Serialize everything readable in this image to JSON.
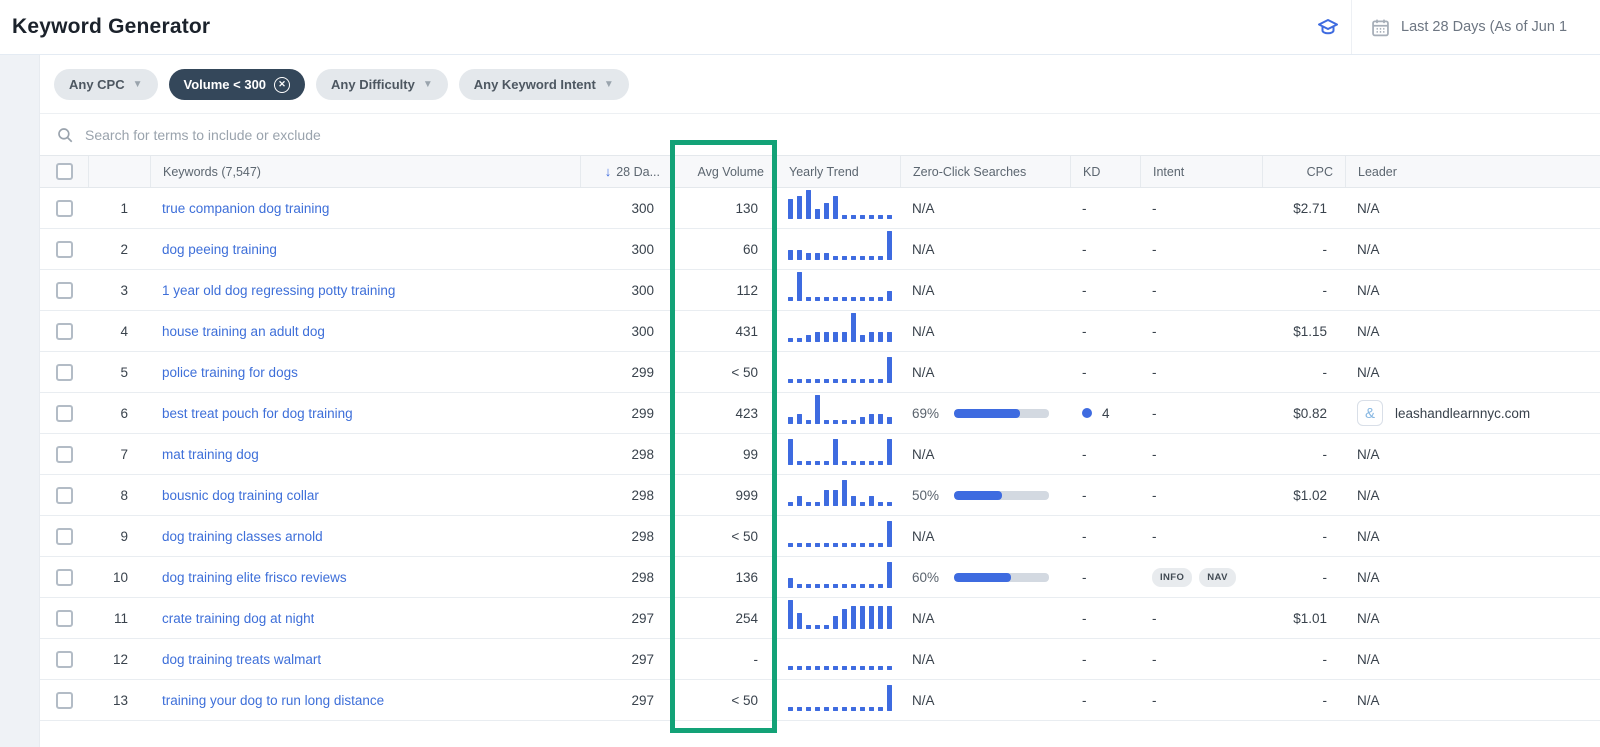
{
  "header": {
    "title": "Keyword Generator",
    "date_range": "Last 28 Days (As of Jun 1",
    "icons": {
      "right_icon_1": "graduation-cap-icon",
      "right_icon_2": "calendar-icon"
    }
  },
  "filters": {
    "pills": [
      {
        "label": "Any CPC",
        "active": false,
        "control": "caret"
      },
      {
        "label": "Volume < 300",
        "active": true,
        "control": "close"
      },
      {
        "label": "Any Difficulty",
        "active": false,
        "control": "caret"
      },
      {
        "label": "Any Keyword Intent",
        "active": false,
        "control": "caret"
      }
    ],
    "close_glyph": "✕",
    "caret_glyph": "▼"
  },
  "search": {
    "placeholder": "Search for terms to include or exclude"
  },
  "table": {
    "columns": {
      "keywords": "Keywords (7,547)",
      "day28": "28 Da...",
      "day28_sort_arrow": "↓",
      "avg_volume": "Avg Volume",
      "yearly_trend": "Yearly Trend",
      "zero_click": "Zero-Click Searches",
      "kd": "KD",
      "intent": "Intent",
      "cpc": "CPC",
      "leader": "Leader"
    },
    "rows": [
      {
        "num": "1",
        "keyword": "true companion dog training",
        "day28": "300",
        "avg_volume": "130",
        "trend": [
          6,
          7,
          9,
          3,
          5,
          7,
          1,
          1,
          1,
          1,
          1,
          1
        ],
        "zero_click": null,
        "kd": null,
        "intent": [],
        "cpc": "$2.71",
        "leader": null
      },
      {
        "num": "2",
        "keyword": "dog peeing training",
        "day28": "300",
        "avg_volume": "60",
        "trend": [
          3,
          3,
          2,
          2,
          2,
          1,
          1,
          1,
          1,
          1,
          1,
          9
        ],
        "zero_click": null,
        "kd": null,
        "intent": [],
        "cpc": "-",
        "leader": null
      },
      {
        "num": "3",
        "keyword": "1 year old dog regressing potty training",
        "day28": "300",
        "avg_volume": "112",
        "trend": [
          1,
          9,
          1,
          1,
          1,
          1,
          1,
          1,
          1,
          1,
          1,
          3
        ],
        "zero_click": null,
        "kd": null,
        "intent": [],
        "cpc": "-",
        "leader": null
      },
      {
        "num": "4",
        "keyword": "house training an adult dog",
        "day28": "300",
        "avg_volume": "431",
        "trend": [
          1,
          1,
          2,
          3,
          3,
          3,
          3,
          9,
          2,
          3,
          3,
          3
        ],
        "zero_click": null,
        "kd": null,
        "intent": [],
        "cpc": "$1.15",
        "leader": null
      },
      {
        "num": "5",
        "keyword": "police training for dogs",
        "day28": "299",
        "avg_volume": "< 50",
        "trend": [
          1,
          1,
          1,
          1,
          1,
          1,
          1,
          1,
          1,
          1,
          1,
          8
        ],
        "zero_click": null,
        "kd": null,
        "intent": [],
        "cpc": "-",
        "leader": null
      },
      {
        "num": "6",
        "keyword": "best treat pouch for dog training",
        "day28": "299",
        "avg_volume": "423",
        "trend": [
          2,
          3,
          1,
          9,
          1,
          1,
          1,
          1,
          2,
          3,
          3,
          2
        ],
        "zero_click": "69%",
        "kd": "4",
        "intent": [],
        "cpc": "$0.82",
        "leader": "leashandlearnnyc.com"
      },
      {
        "num": "7",
        "keyword": "mat training dog",
        "day28": "298",
        "avg_volume": "99",
        "trend": [
          8,
          1,
          1,
          1,
          1,
          8,
          1,
          1,
          1,
          1,
          1,
          8
        ],
        "zero_click": null,
        "kd": null,
        "intent": [],
        "cpc": "-",
        "leader": null
      },
      {
        "num": "8",
        "keyword": "bousnic dog training collar",
        "day28": "298",
        "avg_volume": "999",
        "trend": [
          1,
          3,
          1,
          1,
          5,
          5,
          8,
          3,
          1,
          3,
          1,
          1
        ],
        "zero_click": "50%",
        "kd": null,
        "intent": [],
        "cpc": "$1.02",
        "leader": null
      },
      {
        "num": "9",
        "keyword": "dog training classes arnold",
        "day28": "298",
        "avg_volume": "< 50",
        "trend": [
          1,
          1,
          1,
          1,
          1,
          1,
          1,
          1,
          1,
          1,
          1,
          8
        ],
        "zero_click": null,
        "kd": null,
        "intent": [],
        "cpc": "-",
        "leader": null
      },
      {
        "num": "10",
        "keyword": "dog training elite frisco reviews",
        "day28": "298",
        "avg_volume": "136",
        "trend": [
          3,
          1,
          1,
          1,
          1,
          1,
          1,
          1,
          1,
          1,
          1,
          8
        ],
        "zero_click": "60%",
        "kd": null,
        "intent": [
          "INFO",
          "NAV"
        ],
        "cpc": "-",
        "leader": null
      },
      {
        "num": "11",
        "keyword": "crate training dog at night",
        "day28": "297",
        "avg_volume": "254",
        "trend": [
          9,
          5,
          1,
          1,
          1,
          4,
          6,
          7,
          7,
          7,
          7,
          7
        ],
        "zero_click": null,
        "kd": null,
        "intent": [],
        "cpc": "$1.01",
        "leader": null
      },
      {
        "num": "12",
        "keyword": "dog training treats walmart",
        "day28": "297",
        "avg_volume": "-",
        "trend": [
          1,
          1,
          1,
          1,
          1,
          1,
          1,
          1,
          1,
          1,
          1,
          1
        ],
        "zero_click": null,
        "kd": null,
        "intent": [],
        "cpc": "-",
        "leader": null
      },
      {
        "num": "13",
        "keyword": "training your dog to run long distance",
        "day28": "297",
        "avg_volume": "< 50",
        "trend": [
          1,
          1,
          1,
          1,
          1,
          1,
          1,
          1,
          1,
          1,
          1,
          8
        ],
        "zero_click": null,
        "kd": null,
        "intent": [],
        "cpc": "-",
        "leader": null
      }
    ],
    "na_text": "N/A",
    "dash_text": "-",
    "leader_icon_glyph": "&"
  },
  "colors": {
    "accent_blue": "#3e6be0",
    "link_blue": "#3e6fd9",
    "highlight_green": "#13a277",
    "active_pill": "#34475a",
    "progress_track": "#d3d9e1"
  }
}
